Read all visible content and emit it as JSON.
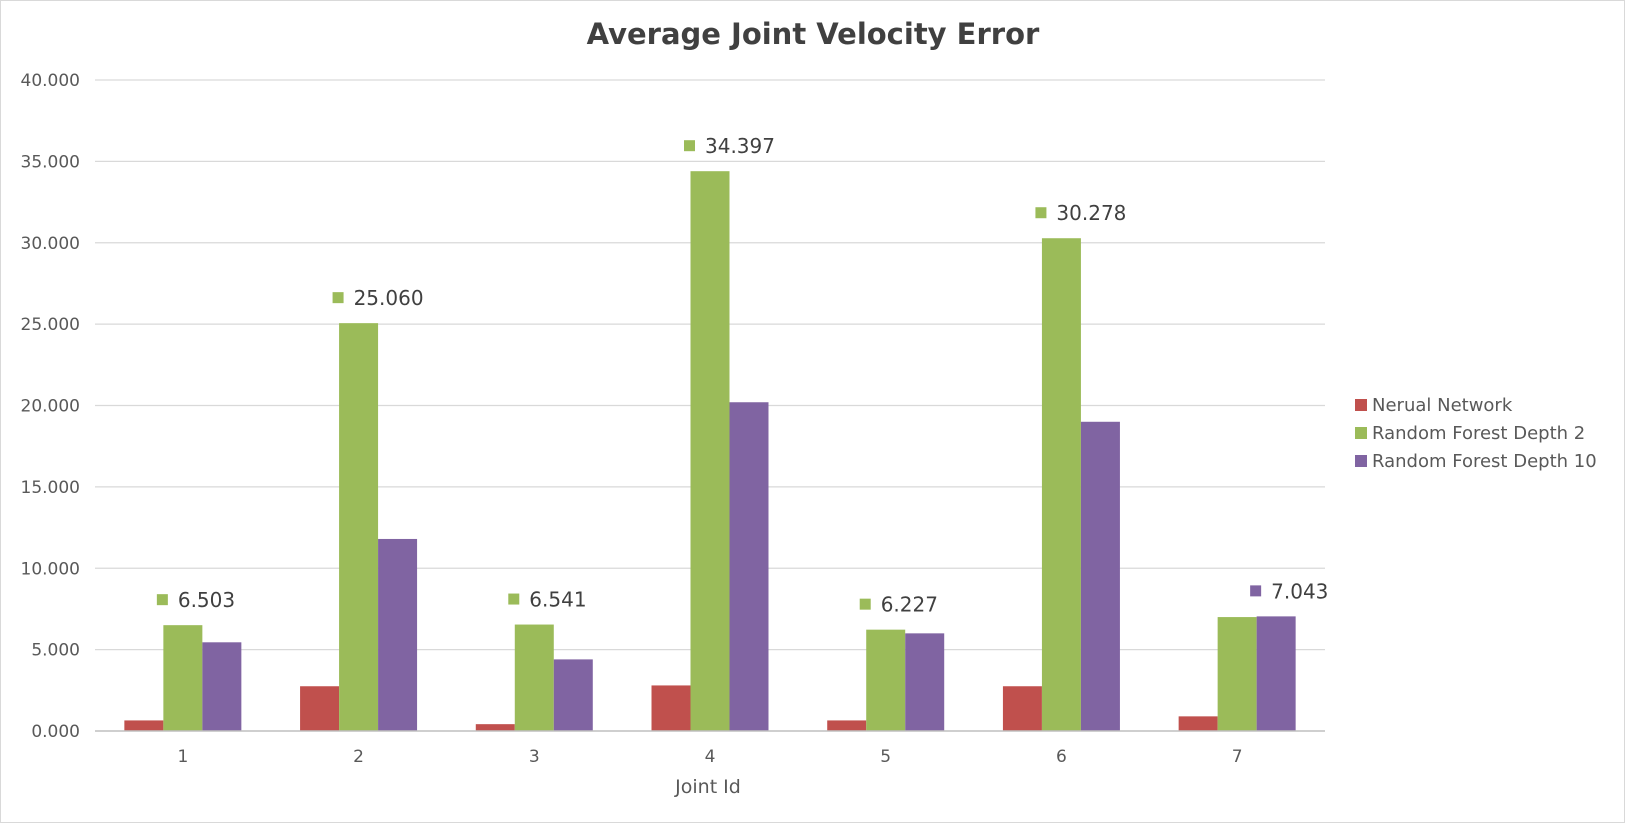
{
  "chart_data": {
    "type": "bar",
    "title": "Average Joint Velocity Error",
    "xlabel": "Joint Id",
    "ylabel": "",
    "categories": [
      "1",
      "2",
      "3",
      "4",
      "5",
      "6",
      "7"
    ],
    "series": [
      {
        "name": "Nerual Network",
        "color": "#c0504d",
        "values": [
          0.65,
          2.75,
          0.42,
          2.8,
          0.65,
          2.75,
          0.9
        ]
      },
      {
        "name": "Random Forest Depth 2",
        "color": "#9bbb59",
        "values": [
          6.503,
          25.06,
          6.541,
          34.397,
          6.227,
          30.278,
          7.0
        ]
      },
      {
        "name": "Random Forest Depth 10",
        "color": "#8064a2",
        "values": [
          5.45,
          11.8,
          4.4,
          20.2,
          6.0,
          19.0,
          7.043
        ]
      }
    ],
    "ylim": [
      0,
      40
    ],
    "yticks": [
      "0.000",
      "5.000",
      "10.000",
      "15.000",
      "20.000",
      "25.000",
      "30.000",
      "35.000",
      "40.000"
    ],
    "grid": true,
    "legend": "right",
    "data_labels": [
      {
        "category": "1",
        "series": "Random Forest Depth 2",
        "text": "6.503"
      },
      {
        "category": "2",
        "series": "Random Forest Depth 2",
        "text": "25.060"
      },
      {
        "category": "3",
        "series": "Random Forest Depth 2",
        "text": "6.541"
      },
      {
        "category": "4",
        "series": "Random Forest Depth 2",
        "text": "34.397"
      },
      {
        "category": "5",
        "series": "Random Forest Depth 2",
        "text": "6.227"
      },
      {
        "category": "6",
        "series": "Random Forest Depth 2",
        "text": "30.278"
      },
      {
        "category": "7",
        "series": "Random Forest Depth 10",
        "text": "7.043"
      }
    ]
  }
}
